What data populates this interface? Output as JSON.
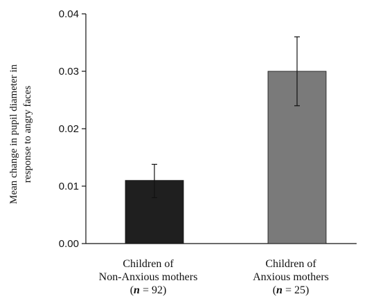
{
  "chart_data": {
    "type": "bar",
    "title": "",
    "ylabel_lines": [
      "Mean change in pupil diameter in",
      "response to angry faces"
    ],
    "xlabel": "",
    "ylim": [
      0,
      0.04
    ],
    "yticks": [
      "0.00",
      "0.01",
      "0.02",
      "0.03",
      "0.04"
    ],
    "ytick_values": [
      0,
      0.01,
      0.02,
      0.03,
      0.04
    ],
    "grid": false,
    "categories": [
      {
        "lines": [
          "Children of",
          "Non-Anxious mothers"
        ],
        "n_prefix": "(",
        "n_symbol": "n",
        "n_rest": " = 92)"
      },
      {
        "lines": [
          "Children of",
          "Anxious mothers"
        ],
        "n_prefix": "(",
        "n_symbol": "n",
        "n_rest": " = 25)"
      }
    ],
    "values": [
      0.011,
      0.03
    ],
    "error_low": [
      0.008,
      0.024
    ],
    "error_high": [
      0.0138,
      0.036
    ],
    "colors": [
      "#1f1f1f",
      "#7a7a7a"
    ]
  }
}
